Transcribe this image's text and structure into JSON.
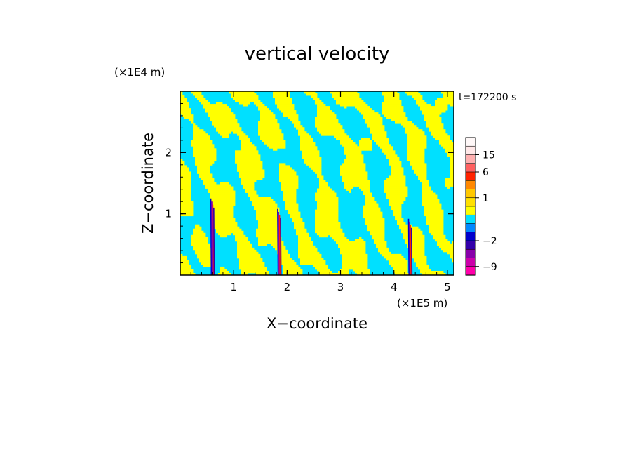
{
  "chart_data": {
    "type": "heatmap",
    "title": "vertical velocity",
    "xlabel": "X−coordinate",
    "ylabel": "Z−coordinate",
    "x_unit": "(×1E5 m)",
    "y_unit": "(×1E4 m)",
    "time_label": "t=172200 s",
    "xlim": [
      0,
      5.12
    ],
    "ylim": [
      0,
      3.0
    ],
    "x_ticks": [
      1,
      2,
      3,
      4,
      5
    ],
    "y_ticks": [
      1,
      2
    ],
    "colorbar": {
      "tick_labels": [
        "15",
        "6",
        "1",
        "−2",
        "−9"
      ],
      "tick_values": [
        15,
        6,
        1,
        -2,
        -9
      ],
      "levels": [
        -12,
        -9,
        -6,
        -4,
        -2,
        -1,
        -0.5,
        0,
        0.5,
        1,
        1.5,
        3,
        6,
        10,
        15,
        20,
        30
      ],
      "colors": [
        "#ff00aa",
        "#cc00aa",
        "#8800aa",
        "#3300aa",
        "#0000cc",
        "#0088ff",
        "#00e0ff",
        "#ffff00",
        "#ffe000",
        "#ffc800",
        "#ff8800",
        "#ff2200",
        "#ff6060",
        "#ffb0b0",
        "#ffe8e8",
        "#fff8f8"
      ]
    },
    "field_colors": {
      "positive": "#ffff00",
      "negative": "#00e0ff"
    },
    "extreme_updrafts_x": [
      0.6,
      1.85,
      4.3
    ]
  }
}
